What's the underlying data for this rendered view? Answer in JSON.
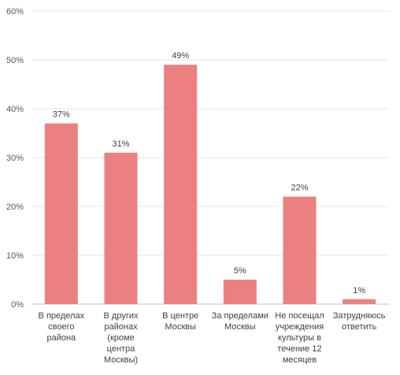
{
  "chart_data": {
    "type": "bar",
    "categories": [
      [
        "В пределах",
        "своего",
        "района"
      ],
      [
        "В других",
        "районах",
        "(кроме",
        "центра",
        "Москвы)"
      ],
      [
        "В центре",
        "Москвы"
      ],
      [
        "За пределами",
        "Москвы"
      ],
      [
        "Не посещал",
        "учреждения",
        "культуры  в",
        "течение 12",
        "месяцев"
      ],
      [
        "Затрудняюсь",
        "ответить"
      ]
    ],
    "values": [
      37,
      31,
      49,
      5,
      22,
      1
    ],
    "value_labels": [
      "37%",
      "31%",
      "49%",
      "5%",
      "22%",
      "1%"
    ],
    "y_ticks": [
      "0%",
      "10%",
      "20%",
      "30%",
      "40%",
      "50%",
      "60%"
    ],
    "ylim": [
      0,
      60
    ],
    "grid": true,
    "bar_color": "#EC8080",
    "grid_color": "#E6E6E6"
  }
}
